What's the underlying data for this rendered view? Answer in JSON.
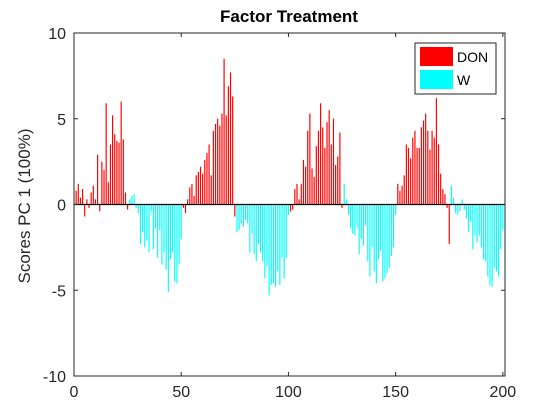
{
  "chart_data": {
    "type": "bar",
    "title": "Factor Treatment",
    "xlabel": "",
    "ylabel": "Scores PC 1 (100%)",
    "xlim": [
      0,
      201
    ],
    "ylim": [
      -10,
      10
    ],
    "xticks": [
      0,
      50,
      100,
      150,
      200
    ],
    "yticks": [
      -10,
      -5,
      0,
      5,
      10
    ],
    "grid": false,
    "legend_position": "top-right",
    "series": [
      {
        "name": "DON",
        "color": "#ff0000",
        "x": [
          1,
          2,
          3,
          4,
          5,
          6,
          7,
          8,
          9,
          10,
          11,
          12,
          13,
          14,
          15,
          16,
          17,
          18,
          19,
          20,
          21,
          22,
          23,
          24,
          25,
          51,
          52,
          53,
          54,
          55,
          56,
          57,
          58,
          59,
          60,
          61,
          62,
          63,
          64,
          65,
          66,
          67,
          68,
          69,
          70,
          71,
          72,
          73,
          74,
          75,
          101,
          102,
          103,
          104,
          105,
          106,
          107,
          108,
          109,
          110,
          111,
          112,
          113,
          114,
          115,
          116,
          117,
          118,
          119,
          120,
          121,
          122,
          123,
          124,
          125,
          151,
          152,
          153,
          154,
          155,
          156,
          157,
          158,
          159,
          160,
          161,
          162,
          163,
          164,
          165,
          166,
          167,
          168,
          169,
          170,
          171,
          172,
          173,
          174,
          175
        ],
        "values": [
          0.8,
          1.2,
          0.4,
          0.9,
          -0.7,
          0.3,
          -0.2,
          0.7,
          1.1,
          0.3,
          2.9,
          -0.4,
          2.5,
          2.0,
          5.9,
          1.3,
          3.5,
          5.2,
          4.1,
          3.7,
          3.6,
          6.0,
          3.8,
          0.7,
          -0.3,
          -0.2,
          -0.5,
          0.3,
          1.0,
          1.2,
          0.5,
          1.7,
          1.9,
          2.2,
          1.8,
          2.6,
          3.0,
          3.5,
          1.7,
          4.3,
          4.7,
          5.0,
          4.6,
          5.3,
          8.5,
          5.2,
          6.9,
          7.7,
          6.3,
          -0.7,
          -0.4,
          -0.3,
          0.9,
          1.2,
          0.3,
          1.2,
          2.6,
          2.2,
          4.3,
          5.3,
          2.1,
          1.6,
          3.4,
          4.3,
          5.9,
          4.5,
          3.3,
          4.8,
          5.5,
          3.5,
          5.0,
          2.3,
          2.8,
          4.2,
          -0.2,
          1.2,
          0.8,
          1.1,
          1.7,
          3.5,
          3.3,
          2.7,
          3.9,
          4.3,
          3.3,
          3.3,
          4.5,
          4.9,
          5.3,
          4.3,
          3.2,
          4.3,
          3.9,
          6.2,
          3.5,
          1.8,
          0.9,
          0.6,
          -0.2,
          -2.3
        ]
      },
      {
        "name": "W",
        "color": "#00ffff",
        "x": [
          26,
          27,
          28,
          29,
          30,
          31,
          32,
          33,
          34,
          35,
          36,
          37,
          38,
          39,
          40,
          41,
          42,
          43,
          44,
          45,
          46,
          47,
          48,
          49,
          50,
          76,
          77,
          78,
          79,
          80,
          81,
          82,
          83,
          84,
          85,
          86,
          87,
          88,
          89,
          90,
          91,
          92,
          93,
          94,
          95,
          96,
          97,
          98,
          99,
          100,
          126,
          127,
          128,
          129,
          130,
          131,
          132,
          133,
          134,
          135,
          136,
          137,
          138,
          139,
          140,
          141,
          142,
          143,
          144,
          145,
          146,
          147,
          148,
          149,
          150,
          176,
          177,
          178,
          179,
          180,
          181,
          182,
          183,
          184,
          185,
          186,
          187,
          188,
          189,
          190,
          191,
          192,
          193,
          194,
          195,
          196,
          197,
          198,
          199,
          200
        ],
        "values": [
          0.3,
          0.5,
          0.6,
          -0.2,
          -0.5,
          -2.3,
          -1.6,
          -2.5,
          -2.1,
          -2.8,
          -0.4,
          -2.6,
          -1.4,
          -3.1,
          -1.5,
          -3.5,
          -2.8,
          -3.8,
          -5.1,
          -3.2,
          -2.8,
          -4.5,
          -4.6,
          -3.5,
          -2.0,
          -1.6,
          -1.5,
          -1.1,
          -1.3,
          -0.9,
          -1.1,
          -2.8,
          -1.7,
          -2.9,
          -3.3,
          -2.3,
          -2.8,
          -3.3,
          -4.3,
          -3.6,
          -5.3,
          -4.7,
          -4.6,
          -4.8,
          -3.9,
          -4.7,
          -3.1,
          -4.3,
          -3.1,
          -0.6,
          1.2,
          0.3,
          -0.6,
          -1.4,
          -1.7,
          -1.8,
          -1.3,
          -2.9,
          -2.0,
          -2.4,
          -1.2,
          -3.3,
          -4.2,
          -2.5,
          -3.9,
          -4.6,
          -3.2,
          -2.7,
          -4.5,
          -4.3,
          -4.0,
          -3.7,
          -3.0,
          -2.5,
          -0.6,
          1.1,
          0.4,
          -0.5,
          -0.6,
          -0.4,
          0.3,
          -0.3,
          -0.8,
          -1.6,
          -1.0,
          -2.6,
          -1.8,
          -2.2,
          -1.8,
          -2.5,
          -3.2,
          -3.3,
          -4.2,
          -4.7,
          -4.8,
          -3.7,
          -3.9,
          -4.2,
          -2.6,
          -1.5
        ]
      }
    ]
  }
}
